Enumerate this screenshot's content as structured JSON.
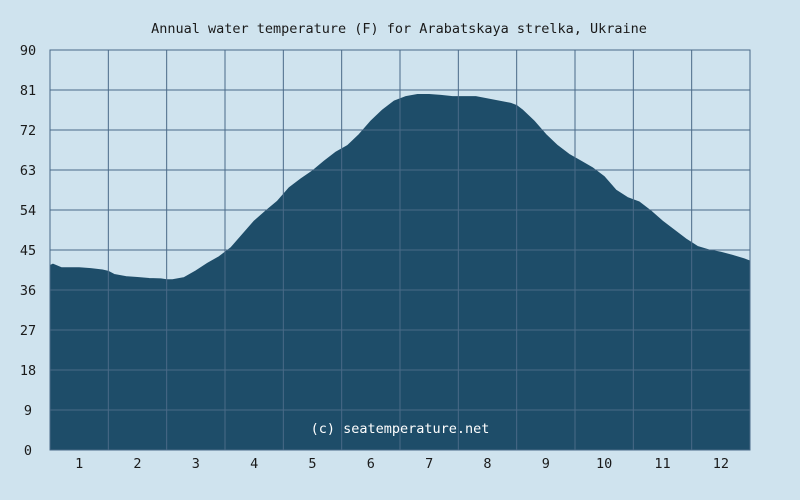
{
  "chart_data": {
    "type": "area",
    "title": "Annual water temperature (F) for Arabatskaya strelka, Ukraine",
    "xlabel": "",
    "ylabel": "",
    "xlim": [
      0.5,
      12.5
    ],
    "ylim": [
      0,
      90
    ],
    "x_ticks": [
      1,
      2,
      3,
      4,
      5,
      6,
      7,
      8,
      9,
      10,
      11,
      12
    ],
    "y_ticks": [
      0,
      9,
      18,
      27,
      36,
      45,
      54,
      63,
      72,
      81,
      90
    ],
    "grid": true,
    "series": [
      {
        "x": [
          0.5,
          0.55,
          0.7,
          1.0,
          1.2,
          1.4,
          1.5,
          1.6,
          1.8,
          2.0,
          2.2,
          2.4,
          2.5,
          2.6,
          2.8,
          3.0,
          3.2,
          3.4,
          3.6,
          3.8,
          4.0,
          4.2,
          4.4,
          4.6,
          4.8,
          5.0,
          5.2,
          5.4,
          5.6,
          5.8,
          6.0,
          6.2,
          6.4,
          6.6,
          6.8,
          7.0,
          7.2,
          7.4,
          7.5,
          7.6,
          7.8,
          8.0,
          8.2,
          8.4,
          8.5,
          8.6,
          8.8,
          9.0,
          9.2,
          9.4,
          9.6,
          9.8,
          10.0,
          10.2,
          10.4,
          10.6,
          10.8,
          11.0,
          11.2,
          11.4,
          11.6,
          11.8,
          12.0,
          12.2,
          12.4,
          12.5
        ],
        "values": [
          41.5,
          41.8,
          41.0,
          41.0,
          40.8,
          40.5,
          40.2,
          39.5,
          39.0,
          38.8,
          38.6,
          38.5,
          38.3,
          38.3,
          38.8,
          40.3,
          42.0,
          43.5,
          45.5,
          48.5,
          51.5,
          53.8,
          56.0,
          59.0,
          61.0,
          62.8,
          65.0,
          67.0,
          68.5,
          71.0,
          74.0,
          76.5,
          78.5,
          79.5,
          80.0,
          80.0,
          79.8,
          79.5,
          79.5,
          79.5,
          79.5,
          79.0,
          78.5,
          78.0,
          77.5,
          76.5,
          74.0,
          71.0,
          68.5,
          66.5,
          65.0,
          63.5,
          61.5,
          58.5,
          56.8,
          55.8,
          53.8,
          51.5,
          49.5,
          47.5,
          45.8,
          45.0,
          44.5,
          43.8,
          43.0,
          42.5
        ]
      }
    ],
    "colors": {
      "background": "#cfe3ee",
      "plot_background": "#cfe3ee",
      "area_fill": "#1e4d69",
      "grid": "#4a6a88",
      "watermark": "#ffffff"
    },
    "watermark": "(c) seatemperature.net"
  }
}
